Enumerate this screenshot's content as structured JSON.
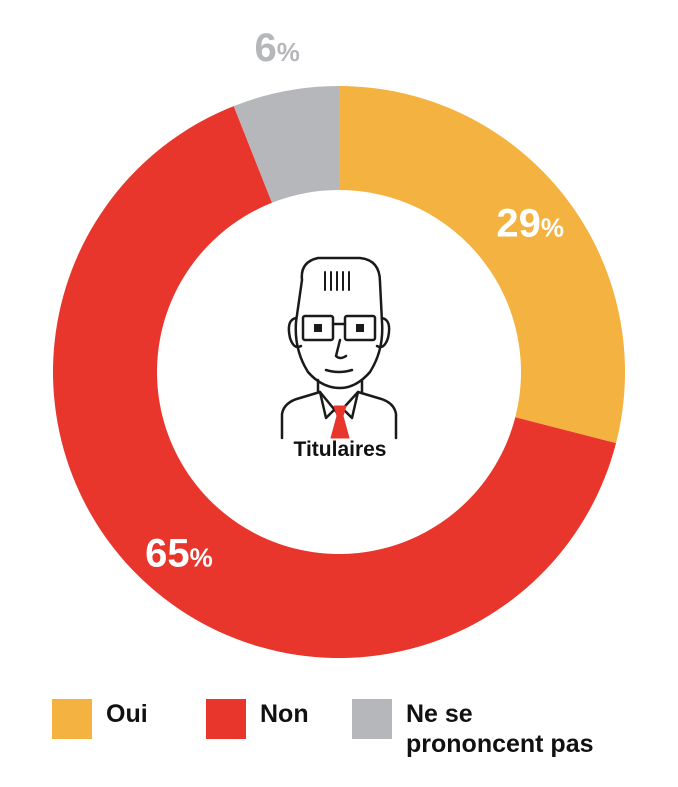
{
  "chart_data": {
    "type": "pie",
    "variant": "donut",
    "center_label": "Titulaires",
    "slices": [
      {
        "label": "Oui",
        "value": 29,
        "display": "29",
        "color": "#f4b240"
      },
      {
        "label": "Non",
        "value": 65,
        "display": "65",
        "color": "#e8362d"
      },
      {
        "label": "Ne se prononcent pas",
        "value": 6,
        "display": "6",
        "color": "#b6b7bb"
      }
    ],
    "percent_symbol": "%",
    "legend": [
      {
        "label": "Oui",
        "color": "#f4b240"
      },
      {
        "label": "Non",
        "color": "#e8362d"
      },
      {
        "label": "Ne se\nprononcent pas",
        "color": "#b6b7bb"
      }
    ]
  },
  "center_icon": "man-with-glasses-and-tie-icon"
}
